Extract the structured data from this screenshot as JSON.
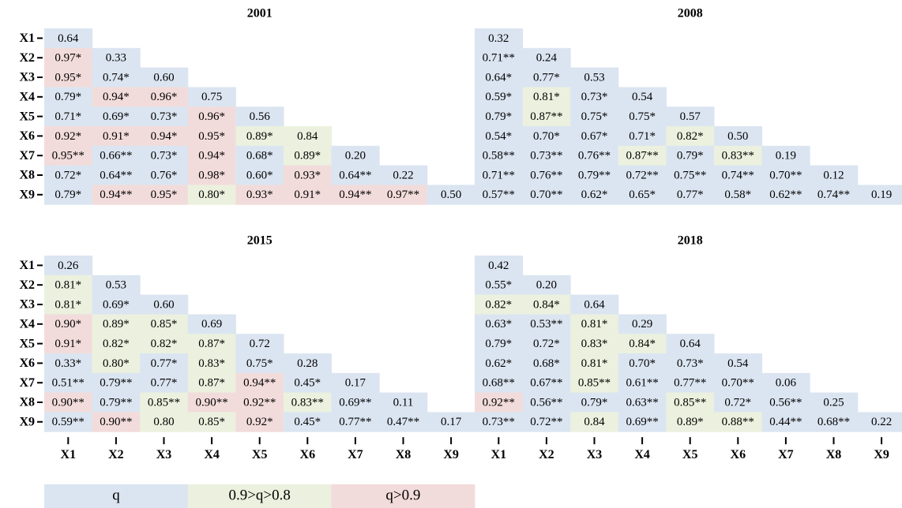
{
  "chart_data": [
    {
      "type": "heatmap",
      "title": "2001",
      "y_categories": [
        "X1",
        "X2",
        "X3",
        "X4",
        "X5",
        "X6",
        "X7",
        "X8",
        "X9"
      ],
      "values": [
        [
          0.64
        ],
        [
          0.97,
          0.33
        ],
        [
          0.95,
          0.74,
          0.6
        ],
        [
          0.79,
          0.94,
          0.96,
          0.75
        ],
        [
          0.71,
          0.69,
          0.73,
          0.96,
          0.56
        ],
        [
          0.92,
          0.91,
          0.94,
          0.95,
          0.89,
          0.84
        ],
        [
          0.95,
          0.66,
          0.73,
          0.94,
          0.68,
          0.89,
          0.2
        ],
        [
          0.72,
          0.64,
          0.76,
          0.98,
          0.6,
          0.93,
          0.64,
          0.22
        ],
        [
          0.79,
          0.94,
          0.95,
          0.8,
          0.93,
          0.91,
          0.94,
          0.97,
          0.5
        ]
      ],
      "value_labels": [
        [
          "0.64"
        ],
        [
          "0.97*",
          "0.33"
        ],
        [
          "0.95*",
          "0.74*",
          "0.60"
        ],
        [
          "0.79*",
          "0.94*",
          "0.96*",
          "0.75"
        ],
        [
          "0.71*",
          "0.69*",
          "0.73*",
          "0.96*",
          "0.56"
        ],
        [
          "0.92*",
          "0.91*",
          "0.94*",
          "0.95*",
          "0.89*",
          "0.84"
        ],
        [
          "0.95**",
          "0.66**",
          "0.73*",
          "0.94*",
          "0.68*",
          "0.89*",
          "0.20"
        ],
        [
          "0.72*",
          "0.64**",
          "0.76*",
          "0.98*",
          "0.60*",
          "0.93*",
          "0.64**",
          "0.22"
        ],
        [
          "0.79*",
          "0.94**",
          "0.95*",
          "0.80*",
          "0.93*",
          "0.91*",
          "0.94**",
          "0.97**",
          "0.50"
        ]
      ]
    },
    {
      "type": "heatmap",
      "title": "2008",
      "values": [
        [
          0.32
        ],
        [
          0.71,
          0.24
        ],
        [
          0.64,
          0.77,
          0.53
        ],
        [
          0.59,
          0.81,
          0.73,
          0.54
        ],
        [
          0.79,
          0.87,
          0.75,
          0.75,
          0.57
        ],
        [
          0.54,
          0.7,
          0.67,
          0.71,
          0.82,
          0.5
        ],
        [
          0.58,
          0.73,
          0.76,
          0.87,
          0.79,
          0.83,
          0.19
        ],
        [
          0.71,
          0.76,
          0.79,
          0.72,
          0.75,
          0.74,
          0.7,
          0.12
        ],
        [
          0.57,
          0.7,
          0.62,
          0.65,
          0.77,
          0.58,
          0.62,
          0.74,
          0.19
        ]
      ],
      "value_labels": [
        [
          "0.32"
        ],
        [
          "0.71**",
          "0.24"
        ],
        [
          "0.64*",
          "0.77*",
          "0.53"
        ],
        [
          "0.59*",
          "0.81*",
          "0.73*",
          "0.54"
        ],
        [
          "0.79*",
          "0.87**",
          "0.75*",
          "0.75*",
          "0.57"
        ],
        [
          "0.54*",
          "0.70*",
          "0.67*",
          "0.71*",
          "0.82*",
          "0.50"
        ],
        [
          "0.58**",
          "0.73**",
          "0.76**",
          "0.87**",
          "0.79*",
          "0.83**",
          "0.19"
        ],
        [
          "0.71**",
          "0.76**",
          "0.79**",
          "0.72**",
          "0.75**",
          "0.74**",
          "0.70**",
          "0.12"
        ],
        [
          "0.57**",
          "0.70**",
          "0.62*",
          "0.65*",
          "0.77*",
          "0.58*",
          "0.62**",
          "0.74**",
          "0.19"
        ]
      ]
    },
    {
      "type": "heatmap",
      "title": "2015",
      "y_categories": [
        "X1",
        "X2",
        "X3",
        "X4",
        "X5",
        "X6",
        "X7",
        "X8",
        "X9"
      ],
      "x_categories": [
        "X1",
        "X2",
        "X3",
        "X4",
        "X5",
        "X6",
        "X7",
        "X8",
        "X9"
      ],
      "values": [
        [
          0.26
        ],
        [
          0.81,
          0.53
        ],
        [
          0.81,
          0.69,
          0.6
        ],
        [
          0.9,
          0.89,
          0.85,
          0.69
        ],
        [
          0.91,
          0.82,
          0.82,
          0.87,
          0.72
        ],
        [
          0.33,
          0.8,
          0.77,
          0.83,
          0.75,
          0.28
        ],
        [
          0.51,
          0.79,
          0.77,
          0.87,
          0.94,
          0.45,
          0.17
        ],
        [
          0.9,
          0.79,
          0.85,
          0.9,
          0.92,
          0.83,
          0.69,
          0.11
        ],
        [
          0.59,
          0.9,
          0.8,
          0.85,
          0.92,
          0.45,
          0.77,
          0.47,
          0.17
        ]
      ],
      "value_labels": [
        [
          "0.26"
        ],
        [
          "0.81*",
          "0.53"
        ],
        [
          "0.81*",
          "0.69*",
          "0.60"
        ],
        [
          "0.90*",
          "0.89*",
          "0.85*",
          "0.69"
        ],
        [
          "0.91*",
          "0.82*",
          "0.82*",
          "0.87*",
          "0.72"
        ],
        [
          "0.33*",
          "0.80*",
          "0.77*",
          "0.83*",
          "0.75*",
          "0.28"
        ],
        [
          "0.51**",
          "0.79**",
          "0.77*",
          "0.87*",
          "0.94**",
          "0.45*",
          "0.17"
        ],
        [
          "0.90**",
          "0.79**",
          "0.85**",
          "0.90**",
          "0.92**",
          "0.83**",
          "0.69**",
          "0.11"
        ],
        [
          "0.59**",
          "0.90**",
          "0.80",
          "0.85*",
          "0.92*",
          "0.45*",
          "0.77**",
          "0.47**",
          "0.17"
        ]
      ]
    },
    {
      "type": "heatmap",
      "title": "2018",
      "x_categories": [
        "X1",
        "X2",
        "X3",
        "X4",
        "X5",
        "X6",
        "X7",
        "X8",
        "X9"
      ],
      "values": [
        [
          0.42
        ],
        [
          0.55,
          0.2
        ],
        [
          0.82,
          0.84,
          0.64
        ],
        [
          0.63,
          0.53,
          0.81,
          0.29
        ],
        [
          0.79,
          0.72,
          0.83,
          0.84,
          0.64
        ],
        [
          0.62,
          0.68,
          0.81,
          0.7,
          0.73,
          0.54
        ],
        [
          0.68,
          0.67,
          0.85,
          0.61,
          0.77,
          0.7,
          0.06
        ],
        [
          0.92,
          0.56,
          0.79,
          0.63,
          0.85,
          0.72,
          0.56,
          0.25
        ],
        [
          0.73,
          0.72,
          0.84,
          0.69,
          0.89,
          0.88,
          0.44,
          0.68,
          0.22
        ]
      ],
      "value_labels": [
        [
          "0.42"
        ],
        [
          "0.55*",
          "0.20"
        ],
        [
          "0.82*",
          "0.84*",
          "0.64"
        ],
        [
          "0.63*",
          "0.53**",
          "0.81*",
          "0.29"
        ],
        [
          "0.79*",
          "0.72*",
          "0.83*",
          "0.84*",
          "0.64"
        ],
        [
          "0.62*",
          "0.68*",
          "0.81*",
          "0.70*",
          "0.73*",
          "0.54"
        ],
        [
          "0.68**",
          "0.67**",
          "0.85**",
          "0.61**",
          "0.77**",
          "0.70**",
          "0.06"
        ],
        [
          "0.92**",
          "0.56**",
          "0.79*",
          "0.63**",
          "0.85**",
          "0.72*",
          "0.56**",
          "0.25"
        ],
        [
          "0.73**",
          "0.72**",
          "0.84",
          "0.69**",
          "0.89*",
          "0.88**",
          "0.44**",
          "0.68**",
          "0.22"
        ]
      ]
    }
  ],
  "legend": [
    {
      "label": "q",
      "color": "#dbe5f1",
      "from": 0
    },
    {
      "label": "0.9>q>0.8",
      "color": "#ebf1de",
      "from": 0.8
    },
    {
      "label": "q>0.9",
      "color": "#f2dcdb",
      "from": 0.9
    }
  ]
}
